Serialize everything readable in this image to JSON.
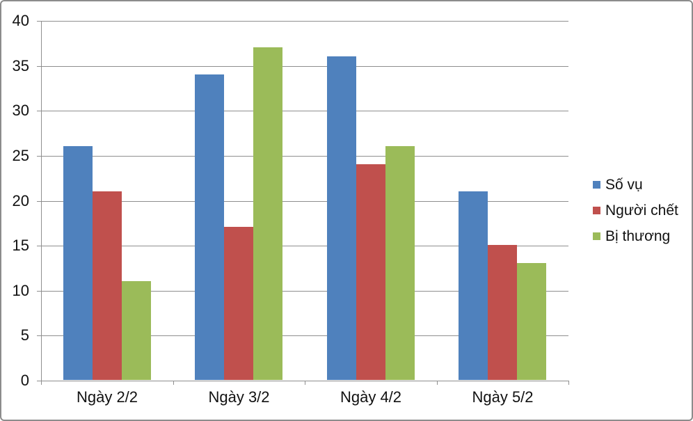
{
  "chart_data": {
    "type": "bar",
    "title": "",
    "categories": [
      "Ngày 2/2",
      "Ngày 3/2",
      "Ngày 4/2",
      "Ngày 5/2"
    ],
    "series": [
      {
        "name": "Số vụ",
        "color": "#4F81BD",
        "values": [
          26,
          34,
          36,
          21
        ]
      },
      {
        "name": "Người chết",
        "color": "#C0504D",
        "values": [
          21,
          17,
          24,
          15
        ]
      },
      {
        "name": "Bị thương",
        "color": "#9BBB59",
        "values": [
          11,
          37,
          26,
          13
        ]
      }
    ],
    "xlabel": "",
    "ylabel": "",
    "y_axis": {
      "min": 0,
      "max": 40,
      "tick_interval": 5,
      "ticks": [
        0,
        5,
        10,
        15,
        20,
        25,
        30,
        35,
        40
      ]
    },
    "grid": true,
    "legend_position": "right",
    "colors": {
      "gridline": "#8E8E8E",
      "axis": "#8E8E8E",
      "text": "#111111",
      "frame_border": "#8C8C8C",
      "background": "#FFFFFF"
    }
  }
}
